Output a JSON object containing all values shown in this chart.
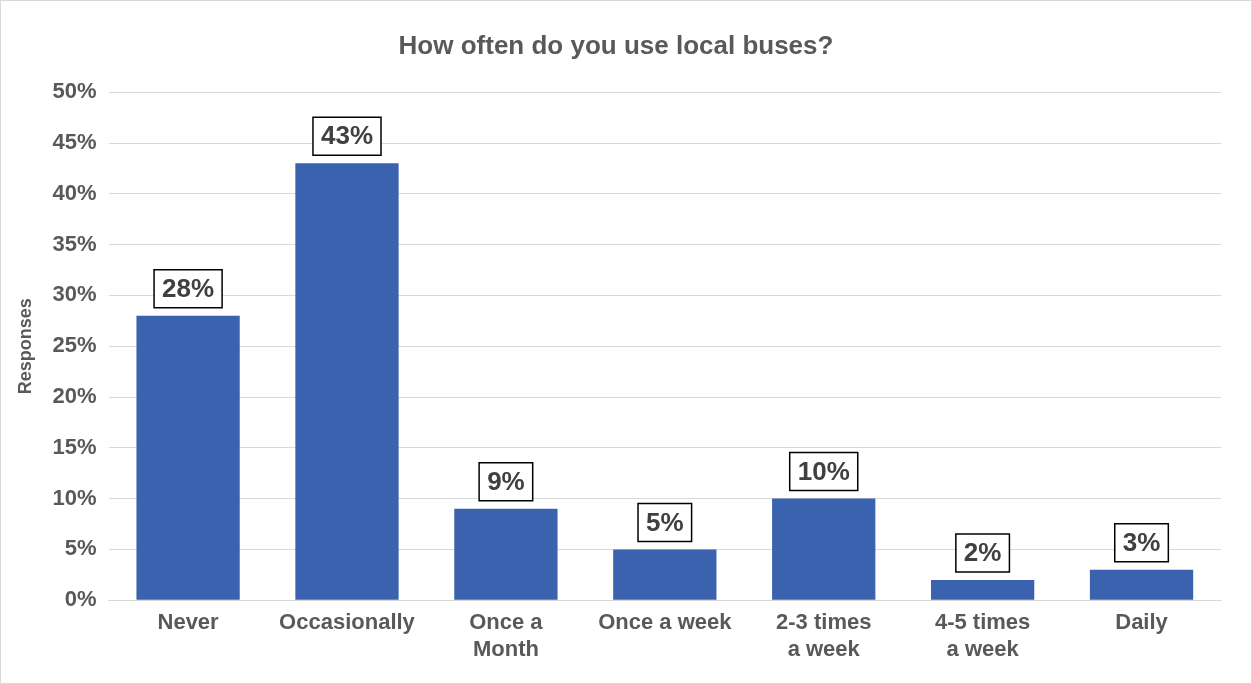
{
  "chart_data": {
    "type": "bar",
    "title": "How often do you use local buses?",
    "ylabel": "Responses",
    "categories": [
      "Never",
      "Occasionally",
      "Once a Month",
      "Once a week",
      "2-3 times a week",
      "4-5 times a week",
      "Daily"
    ],
    "values": [
      28,
      43,
      9,
      5,
      10,
      2,
      3
    ],
    "color": "#3b62ae",
    "value_labels": [
      "28%",
      "43%",
      "9%",
      "5%",
      "10%",
      "2%",
      "3%"
    ],
    "ylim": [
      0,
      50
    ],
    "yticks": [
      {
        "value": 0,
        "label": "0%"
      },
      {
        "value": 5,
        "label": "5%"
      },
      {
        "value": 10,
        "label": "10%"
      },
      {
        "value": 15,
        "label": "15%"
      },
      {
        "value": 20,
        "label": "20%"
      },
      {
        "value": 25,
        "label": "25%"
      },
      {
        "value": 30,
        "label": "30%"
      },
      {
        "value": 35,
        "label": "35%"
      },
      {
        "value": 40,
        "label": "40%"
      },
      {
        "value": 45,
        "label": "45%"
      },
      {
        "value": 50,
        "label": "50%"
      }
    ],
    "grid": "y"
  }
}
